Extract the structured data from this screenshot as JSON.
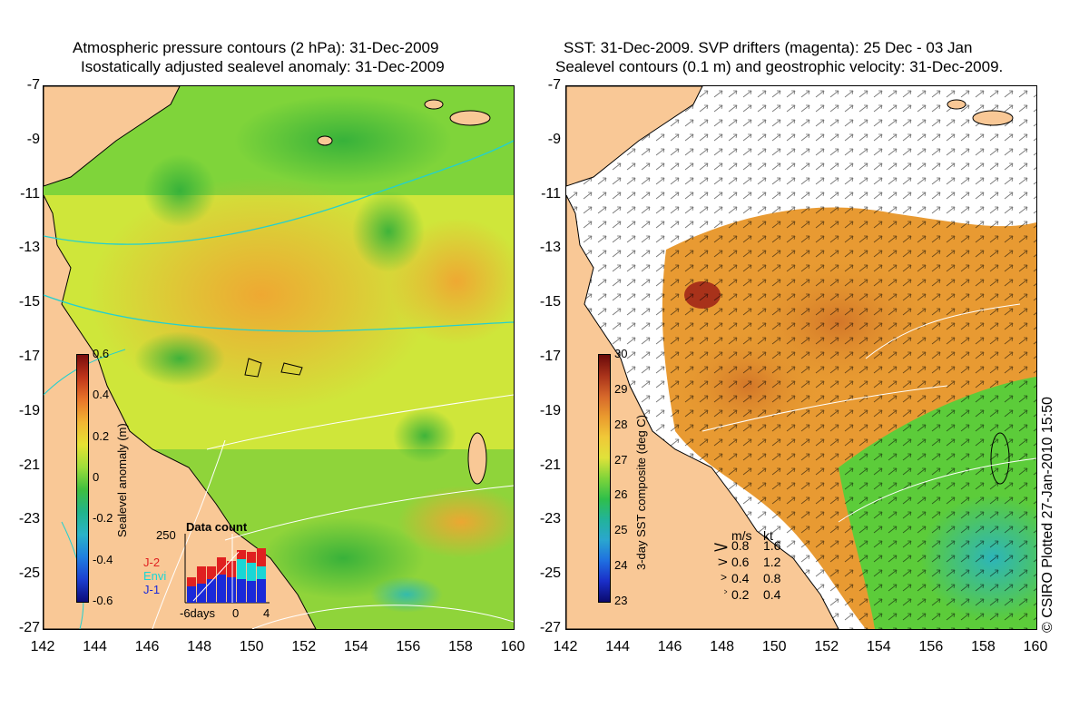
{
  "left_panel": {
    "title_line1": "Atmospheric pressure contours (2 hPa): 31-Dec-2009",
    "title_line2": "Isostatically adjusted sealevel anomaly: 31-Dec-2009",
    "colorbar": {
      "label": "Sealevel anomaly (m)",
      "ticks": [
        "0.6",
        "0.4",
        "0.2",
        "0",
        "-0.2",
        "-0.4",
        "-0.6"
      ],
      "colors": [
        "#7a0d0d",
        "#c0351a",
        "#e8762a",
        "#f2b533",
        "#e6e233",
        "#9fdd3a",
        "#3fbf3f",
        "#22b48a",
        "#2ab3c8",
        "#1f7fe0",
        "#1c3fd0",
        "#0c0a7a"
      ]
    },
    "inset": {
      "title": "Data count",
      "ymax_label": "250",
      "x_labels": [
        "-6days",
        "0",
        "4"
      ],
      "legend": [
        {
          "name": "J-2",
          "color": "#e02020"
        },
        {
          "name": "Envi",
          "color": "#19d6d6"
        },
        {
          "name": "J-1",
          "color": "#1a2ad8"
        }
      ]
    }
  },
  "right_panel": {
    "title_line1": "SST: 31-Dec-2009. SVP drifters (magenta): 25 Dec - 03 Jan",
    "title_line2": "Sealevel contours (0.1 m) and geostrophic velocity: 31-Dec-2009.",
    "colorbar": {
      "label": "3-day SST composite (deg C)",
      "ticks": [
        "30",
        "29",
        "28",
        "27",
        "26",
        "25",
        "24",
        "23"
      ],
      "colors": [
        "#6a0a0a",
        "#a8321a",
        "#d6672a",
        "#ea9a2e",
        "#f0c838",
        "#e0e23a",
        "#7fd43a",
        "#2fbf4a",
        "#22b39a",
        "#2aa6cf",
        "#1f6fe0",
        "#1a2ec8",
        "#0b0a6e"
      ]
    },
    "velocity_key": {
      "header_ms": "m/s",
      "header_kt": "kt",
      "rows": [
        {
          "ms": "0.8",
          "kt": "1.6"
        },
        {
          "ms": "0.6",
          "kt": "1.2"
        },
        {
          "ms": "0.4",
          "kt": "0.8"
        },
        {
          "ms": "0.2",
          "kt": "0.4"
        }
      ]
    }
  },
  "y_axis_labels": [
    "-7",
    "-9",
    "-11",
    "-13",
    "-15",
    "-17",
    "-19",
    "-21",
    "-23",
    "-25",
    "-27"
  ],
  "x_axis_labels": [
    "142",
    "144",
    "146",
    "148",
    "150",
    "152",
    "154",
    "156",
    "158",
    "160"
  ],
  "credit": "© CSIRO Plotted 27-Jan-2010 15:50",
  "map_colors": {
    "land": "#f9c896",
    "coast": "#000000"
  }
}
